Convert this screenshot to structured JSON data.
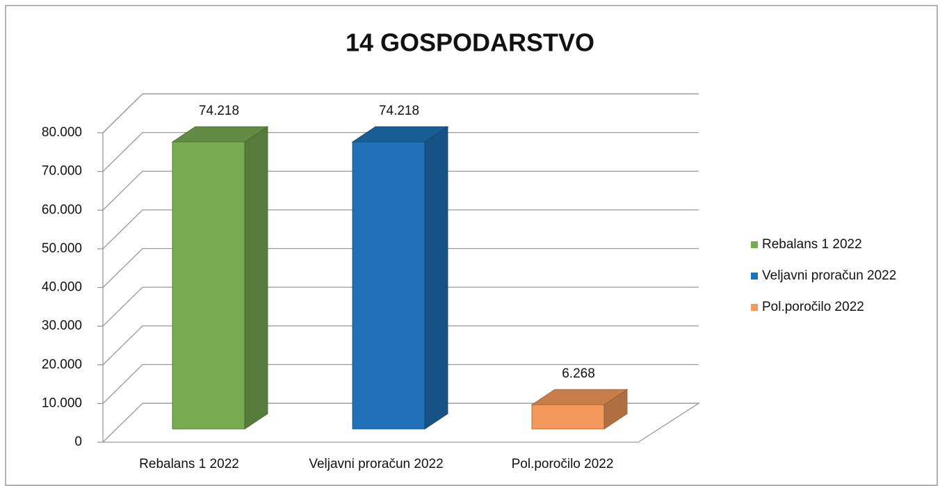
{
  "chart_data": {
    "type": "bar3d",
    "title": "14 GOSPODARSTVO",
    "categories": [
      "Rebalans 1 2022",
      "Veljavni proračun 2022",
      "Pol.poročilo 2022"
    ],
    "values": [
      74218,
      74218,
      6268
    ],
    "value_labels": [
      "74.218",
      "74.218",
      "6.268"
    ],
    "colors": [
      "#78ab52",
      "#1f72b8",
      "#f59a5a"
    ],
    "ylim": [
      0,
      80000
    ],
    "yticks": [
      {
        "value": 0,
        "label": "0"
      },
      {
        "value": 10000,
        "label": "10.000"
      },
      {
        "value": 20000,
        "label": "20.000"
      },
      {
        "value": 30000,
        "label": "30.000"
      },
      {
        "value": 40000,
        "label": "40.000"
      },
      {
        "value": 50000,
        "label": "50.000"
      },
      {
        "value": 60000,
        "label": "60.000"
      },
      {
        "value": 70000,
        "label": "70.000"
      },
      {
        "value": 80000,
        "label": "80.000"
      }
    ],
    "grid": true,
    "legend": "right"
  }
}
